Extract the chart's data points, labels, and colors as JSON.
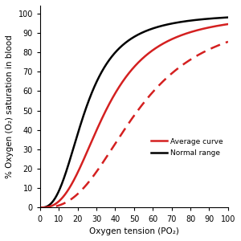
{
  "title": "",
  "xlabel": "Oxygen tension (PO₂)",
  "ylabel": "% Oxygen (O₂) saturation in blood",
  "xlim": [
    0,
    100
  ],
  "ylim": [
    0,
    104
  ],
  "xticks": [
    0,
    10,
    20,
    30,
    40,
    50,
    60,
    70,
    80,
    90,
    100
  ],
  "yticks": [
    0,
    10,
    20,
    30,
    40,
    50,
    60,
    70,
    80,
    90,
    100
  ],
  "avg_color": "#d42020",
  "normal_color": "#000000",
  "background_color": "#ffffff",
  "legend_labels": [
    "Average curve",
    "Normal range"
  ],
  "hill_avg": {
    "n": 2.7,
    "p50": 35.0
  },
  "hill_black_left": {
    "n": 2.7,
    "p50": 24.0
  },
  "hill_dashed_right": {
    "n": 2.7,
    "p50": 52.0
  },
  "linewidth": 1.8,
  "figsize": [
    3.0,
    3.0
  ],
  "dpi": 100
}
